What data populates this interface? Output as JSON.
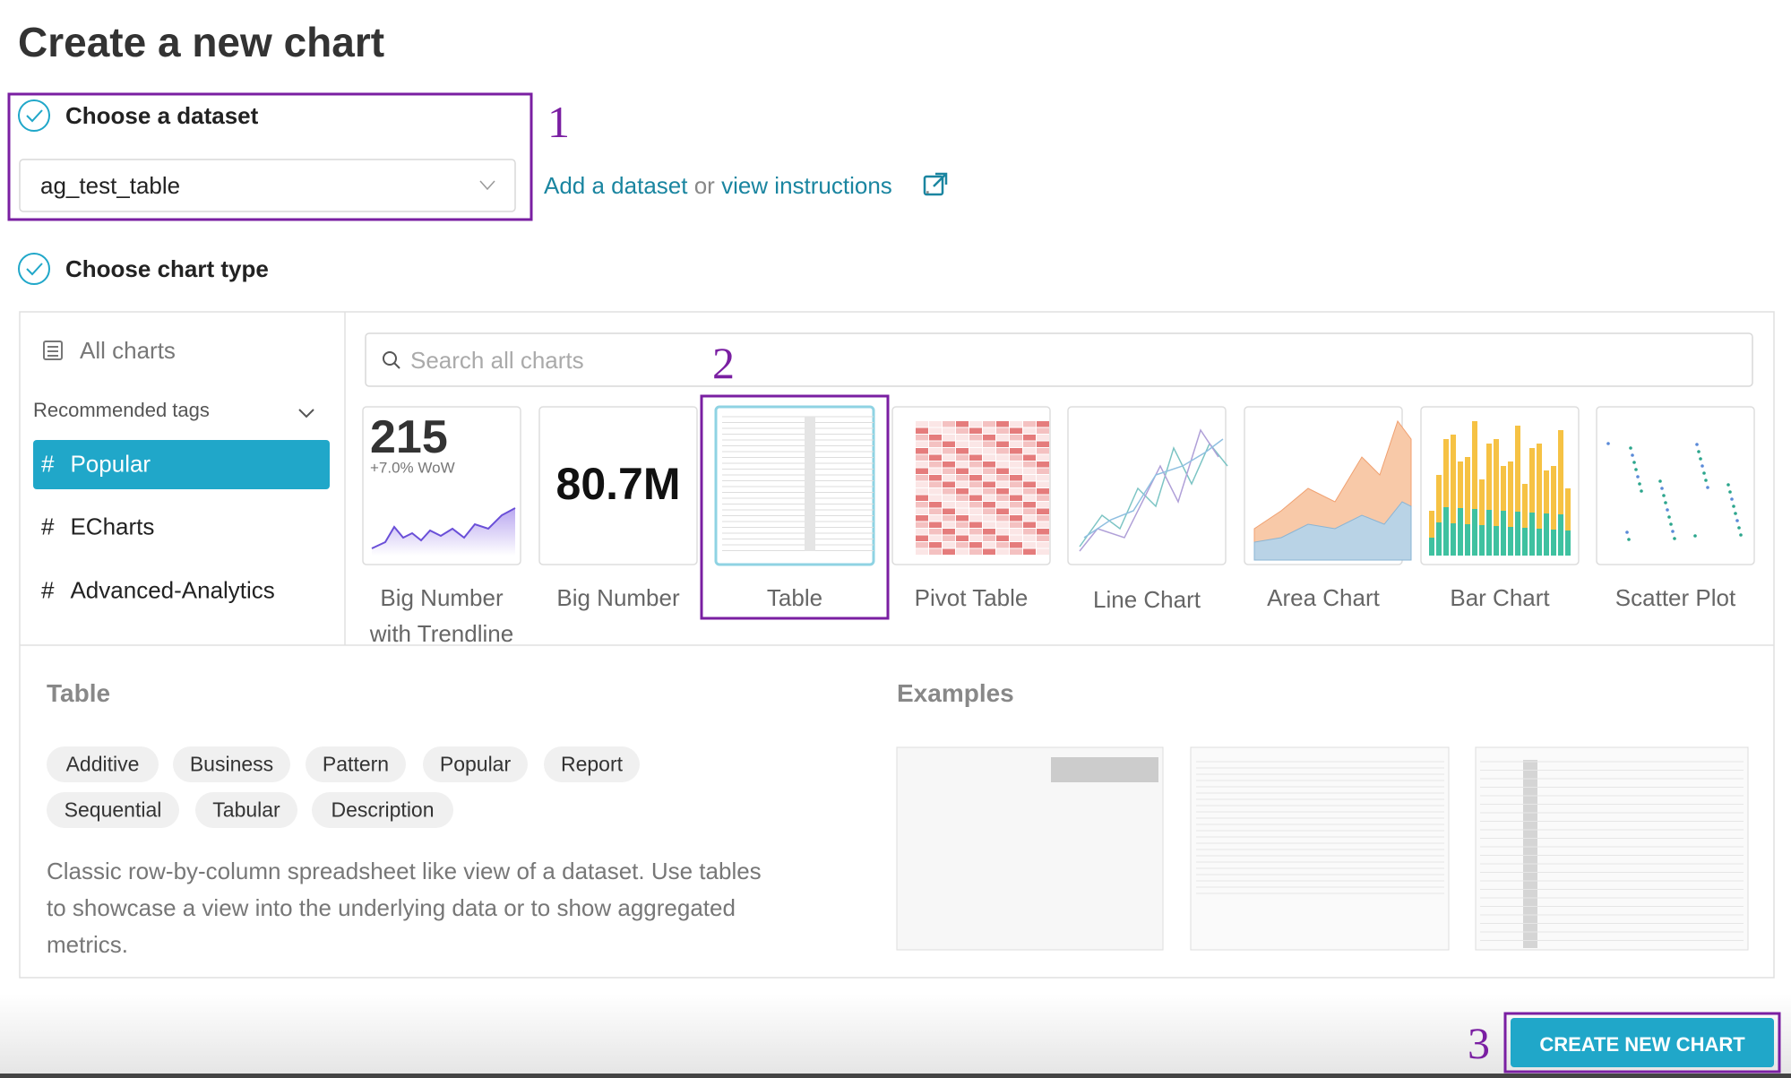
{
  "header": {
    "title": "Create a new chart"
  },
  "dataset_step": {
    "label": "Choose a dataset",
    "selected": "ag_test_table",
    "add_link": "Add a dataset",
    "or": "or",
    "instructions_link": "view instructions",
    "period": "."
  },
  "chart_type_step": {
    "label": "Choose chart type"
  },
  "sidebar": {
    "all_charts": "All charts",
    "recommended_tags": "Recommended tags",
    "tags": [
      "Popular",
      "ECharts",
      "Advanced-Analytics"
    ]
  },
  "search": {
    "placeholder": "Search all charts"
  },
  "thumbnails": {
    "big_number_trend": "215",
    "trend_delta": "+7.0% WoW",
    "big_number": "80.7M"
  },
  "chart_types": [
    "Big Number with Trendline",
    "Big Number",
    "Table",
    "Pivot Table",
    "Line Chart",
    "Area Chart",
    "Bar Chart",
    "Scatter Plot"
  ],
  "details": {
    "title": "Table",
    "tags": [
      "Additive",
      "Business",
      "Pattern",
      "Popular",
      "Report",
      "Sequential",
      "Tabular",
      "Description"
    ],
    "description": "Classic row-by-column spreadsheet like view of a dataset. Use tables to showcase a view into the underlying data or to show aggregated metrics.",
    "examples_title": "Examples"
  },
  "footer": {
    "button": "CREATE NEW CHART"
  },
  "annotations": [
    "1",
    "2",
    "3"
  ]
}
